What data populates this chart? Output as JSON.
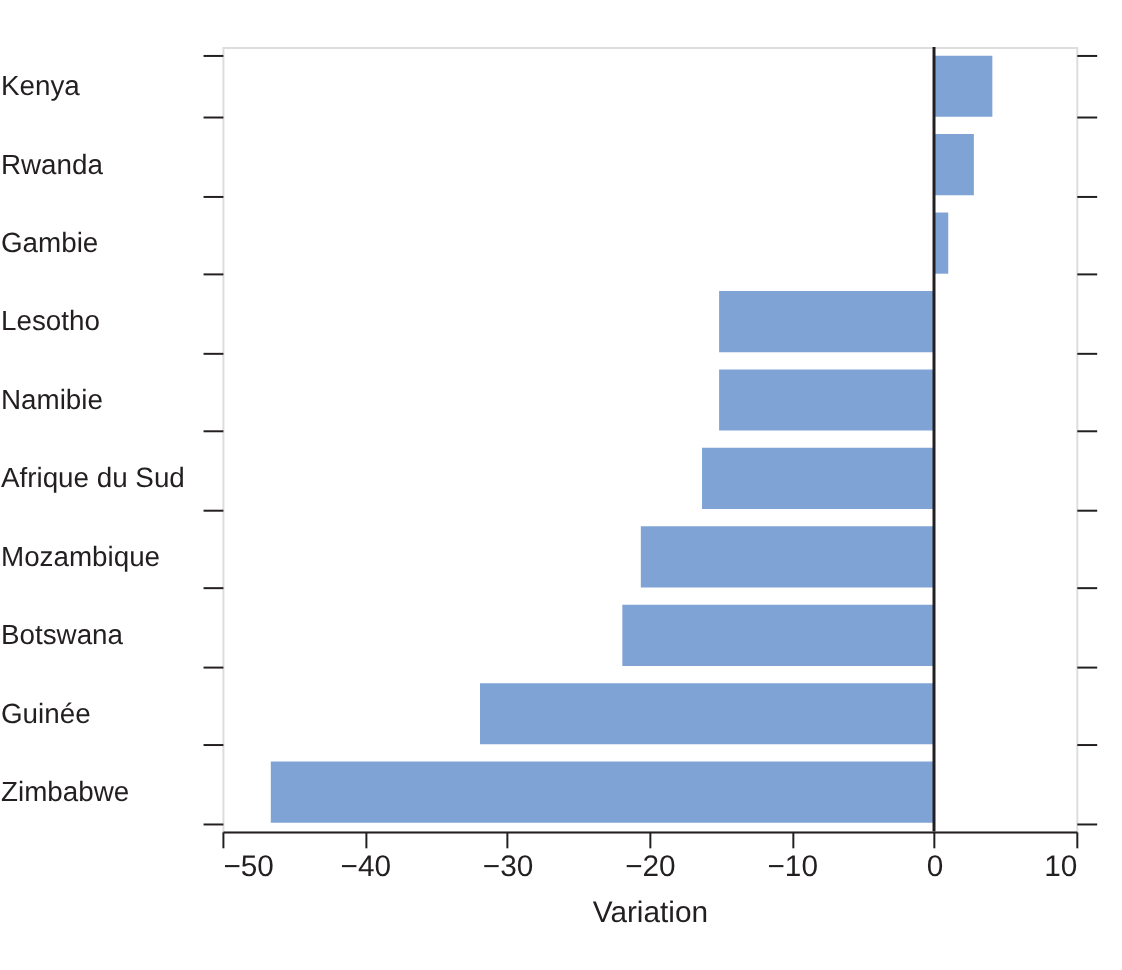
{
  "chart_data": {
    "type": "bar",
    "orientation": "horizontal",
    "xlabel": "Variation",
    "categories": [
      "Kenya",
      "Rwanda",
      "Gambie",
      "Lesotho",
      "Namibie",
      "Afrique du Sud",
      "Mozambique",
      "Botswana",
      "Guinée",
      "Zimbabwe"
    ],
    "values": [
      4.1,
      2.8,
      1.0,
      -15.1,
      -15.1,
      -16.3,
      -20.6,
      -21.9,
      -31.9,
      -46.6
    ],
    "color": "#7ea3d4",
    "xlim": [
      -50,
      10
    ],
    "xticks": [
      -50,
      -40,
      -30,
      -20,
      -10,
      0,
      10
    ],
    "ref_lines": [
      {
        "axis": "x",
        "value": 0,
        "color": "#231f20"
      }
    ],
    "grid": false
  }
}
